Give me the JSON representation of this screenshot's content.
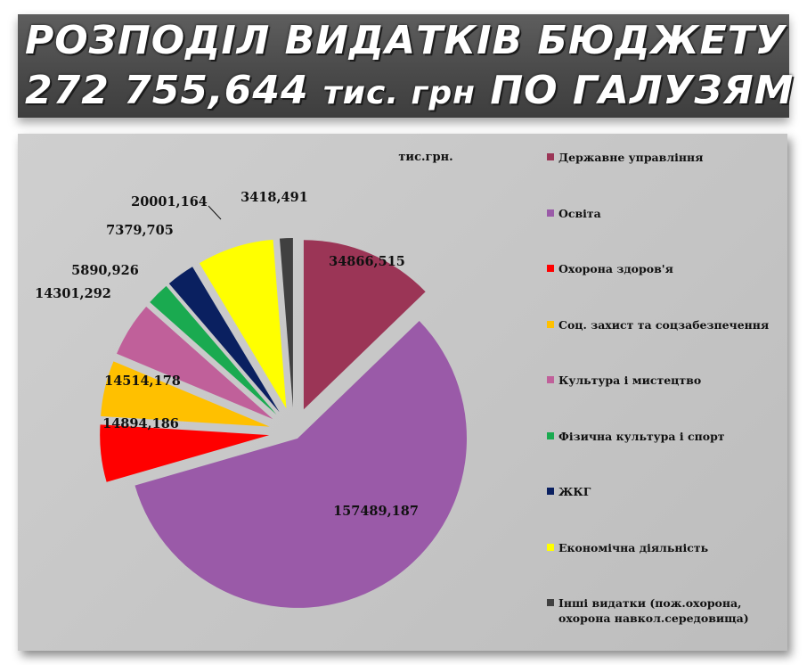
{
  "banner": {
    "line1": "РОЗПОДІЛ ВИДАТКІВ БЮДЖЕТУ",
    "total_value": "272 755,644",
    "unit": "тис. грн",
    "line2_suffix": "ПО ГАЛУЗЯМ"
  },
  "chart_data": {
    "type": "pie",
    "title": "тис.грн.",
    "legend_position": "right",
    "start_angle_deg": 0,
    "direction": "clockwise",
    "exploded": true,
    "slices": [
      {
        "label": "Державне управління",
        "value": 34866.515,
        "value_label": "34866,515",
        "color": "#9b3556"
      },
      {
        "label": "Освіта",
        "value": 157489.187,
        "value_label": "157489,187",
        "color": "#9a5aa8"
      },
      {
        "label": "Охорона здоров'я",
        "value": 14894.186,
        "value_label": "14894,186",
        "color": "#ff0000"
      },
      {
        "label": "Соц. захист та соцзабезпечення",
        "value": 14514.178,
        "value_label": "14514,178",
        "color": "#ffc000"
      },
      {
        "label": "Культура і мистецтво",
        "value": 14301.292,
        "value_label": "14301,292",
        "color": "#c0609a"
      },
      {
        "label": "Фізична культура і спорт",
        "value": 5890.926,
        "value_label": "5890,926",
        "color": "#1aaa50"
      },
      {
        "label": "ЖКГ",
        "value": 7379.705,
        "value_label": "7379,705",
        "color": "#0a2060"
      },
      {
        "label": "Економічна діяльність",
        "value": 20001.164,
        "value_label": "20001,164",
        "color": "#ffff00"
      },
      {
        "label": "Інші видатки (пож.охорона, охорона навкол.середовища)",
        "value": 3418.491,
        "value_label": "3418,491",
        "color": "#404040"
      }
    ]
  }
}
